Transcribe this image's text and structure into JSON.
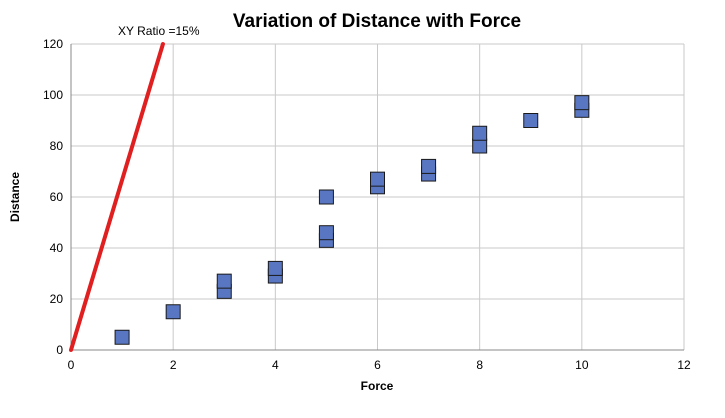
{
  "chart_data": {
    "type": "scatter",
    "title": "Variation of Distance with Force",
    "xlabel": "Force",
    "ylabel": "Distance",
    "xlim": [
      0,
      12
    ],
    "ylim": [
      0,
      120
    ],
    "xticks": [
      0,
      2,
      4,
      6,
      8,
      10,
      12
    ],
    "yticks": [
      0,
      20,
      40,
      60,
      80,
      100,
      120
    ],
    "grid": true,
    "colors": {
      "marker": "#5876c2",
      "line": "#e02020",
      "grid": "#c9c9c9"
    },
    "series": [
      {
        "type": "scatter",
        "marker": "square",
        "points": [
          {
            "x": 1,
            "y": 5
          },
          {
            "x": 2,
            "y": 15
          },
          {
            "x": 3,
            "y": 23
          },
          {
            "x": 3,
            "y": 27
          },
          {
            "x": 4,
            "y": 29
          },
          {
            "x": 4,
            "y": 32
          },
          {
            "x": 5,
            "y": 43
          },
          {
            "x": 5,
            "y": 46
          },
          {
            "x": 5,
            "y": 60
          },
          {
            "x": 6,
            "y": 64
          },
          {
            "x": 6,
            "y": 67
          },
          {
            "x": 7,
            "y": 69
          },
          {
            "x": 7,
            "y": 72
          },
          {
            "x": 8,
            "y": 80
          },
          {
            "x": 8,
            "y": 85
          },
          {
            "x": 9,
            "y": 90
          },
          {
            "x": 10,
            "y": 94
          },
          {
            "x": 10,
            "y": 97
          }
        ]
      },
      {
        "type": "line",
        "points": [
          {
            "x": 0,
            "y": 0
          },
          {
            "x": 1.8,
            "y": 120
          }
        ]
      }
    ],
    "annotations": [
      {
        "text": "XY Ratio =15%"
      }
    ]
  }
}
